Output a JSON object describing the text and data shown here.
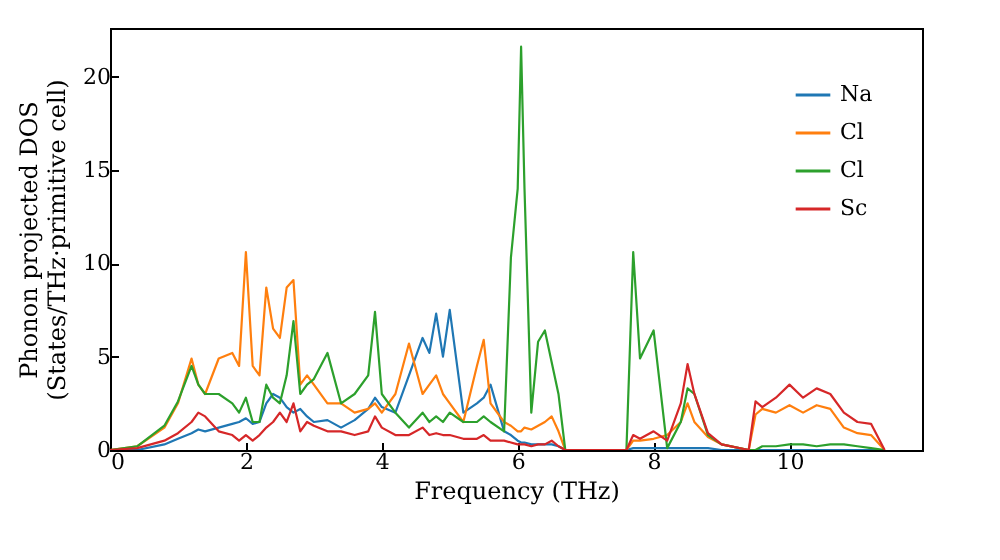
{
  "chart_data": {
    "type": "line",
    "xlabel": "Frequency (THz)",
    "ylabel": "Phonon projected DOS\n(States/THz·primitive cell)",
    "x": [
      0,
      0.4,
      0.8,
      1.0,
      1.2,
      1.3,
      1.4,
      1.6,
      1.8,
      1.9,
      2.0,
      2.1,
      2.2,
      2.3,
      2.4,
      2.5,
      2.6,
      2.7,
      2.8,
      2.9,
      3.0,
      3.2,
      3.4,
      3.6,
      3.8,
      3.9,
      4.0,
      4.2,
      4.4,
      4.6,
      4.7,
      4.8,
      4.9,
      5.0,
      5.2,
      5.4,
      5.5,
      5.6,
      5.8,
      5.9,
      6.0,
      6.05,
      6.1,
      6.2,
      6.3,
      6.4,
      6.5,
      6.6,
      6.7,
      7.0,
      7.6,
      7.7,
      7.8,
      8.0,
      8.2,
      8.4,
      8.5,
      8.6,
      8.8,
      9.0,
      9.4,
      9.5,
      9.6,
      9.8,
      10.0,
      10.2,
      10.4,
      10.6,
      10.8,
      11.0,
      11.2,
      11.4
    ],
    "series": [
      {
        "name": "Na",
        "color": "#1f77b4",
        "values": [
          0,
          0,
          0.3,
          0.6,
          0.9,
          1.1,
          1.0,
          1.2,
          1.4,
          1.5,
          1.7,
          1.4,
          1.5,
          2.5,
          3.0,
          2.8,
          2.3,
          2.0,
          2.2,
          1.8,
          1.5,
          1.6,
          1.2,
          1.6,
          2.2,
          2.8,
          2.3,
          2.0,
          4.0,
          6.0,
          5.2,
          7.3,
          5.0,
          7.5,
          2.0,
          2.5,
          2.8,
          3.5,
          1.0,
          0.8,
          0.5,
          0.4,
          0.4,
          0.3,
          0.3,
          0.3,
          0.3,
          0.2,
          0,
          0,
          0,
          0.1,
          0.1,
          0.1,
          0.1,
          0.1,
          0.1,
          0.1,
          0.1,
          0,
          0,
          0,
          0,
          0,
          0,
          0,
          0,
          0,
          0,
          0,
          0,
          0
        ]
      },
      {
        "name": "Cl",
        "color": "#ff7f0e",
        "values": [
          0,
          0.2,
          1.2,
          2.5,
          4.9,
          3.5,
          3.0,
          4.9,
          5.2,
          4.5,
          10.6,
          4.5,
          4.0,
          8.7,
          6.5,
          6.0,
          8.7,
          9.1,
          3.5,
          4.0,
          3.5,
          2.5,
          2.5,
          2.0,
          2.2,
          2.5,
          2.0,
          3.0,
          5.7,
          3.0,
          3.5,
          4.0,
          3.0,
          2.5,
          1.5,
          4.5,
          5.9,
          2.5,
          1.5,
          1.3,
          1.0,
          1.0,
          1.2,
          1.1,
          1.3,
          1.5,
          1.8,
          1.0,
          0,
          0,
          0,
          0.5,
          0.5,
          0.6,
          0.8,
          1.5,
          2.5,
          1.5,
          0.7,
          0.3,
          0,
          1.9,
          2.2,
          2.0,
          2.4,
          2.0,
          2.4,
          2.2,
          1.2,
          0.9,
          0.8,
          0
        ]
      },
      {
        "name": "Cl",
        "color": "#2ca02c",
        "values": [
          0,
          0.2,
          1.3,
          2.6,
          4.5,
          3.5,
          3.0,
          3.0,
          2.5,
          2.0,
          2.8,
          1.5,
          1.5,
          3.5,
          2.8,
          2.5,
          4.0,
          6.9,
          3.0,
          3.5,
          3.8,
          5.2,
          2.5,
          3.0,
          4.0,
          7.4,
          3.0,
          2.0,
          1.2,
          2.0,
          1.5,
          1.8,
          1.5,
          2.0,
          1.5,
          1.5,
          1.8,
          1.5,
          1.0,
          10.3,
          14.0,
          21.6,
          14.0,
          2.0,
          5.8,
          6.4,
          4.7,
          3.0,
          0,
          0,
          0,
          10.6,
          4.9,
          6.4,
          0.1,
          1.5,
          3.3,
          3.0,
          0.8,
          0.3,
          0,
          0,
          0.2,
          0.2,
          0.3,
          0.3,
          0.2,
          0.3,
          0.3,
          0.2,
          0.1,
          0
        ]
      },
      {
        "name": "Sc",
        "color": "#d62728",
        "values": [
          0,
          0.1,
          0.5,
          0.9,
          1.5,
          2.0,
          1.8,
          1.0,
          0.8,
          0.5,
          0.8,
          0.5,
          0.8,
          1.2,
          1.5,
          2.0,
          1.5,
          2.5,
          1.0,
          1.5,
          1.3,
          1.0,
          1.0,
          0.8,
          1.0,
          1.8,
          1.2,
          0.8,
          0.8,
          1.2,
          0.8,
          0.9,
          0.8,
          0.8,
          0.6,
          0.6,
          0.8,
          0.5,
          0.5,
          0.4,
          0.3,
          0.3,
          0.3,
          0.2,
          0.3,
          0.3,
          0.5,
          0.2,
          0,
          0,
          0,
          0.8,
          0.6,
          1.0,
          0.5,
          2.5,
          4.6,
          3.0,
          0.9,
          0.3,
          0,
          2.6,
          2.3,
          2.8,
          3.5,
          2.8,
          3.3,
          3.0,
          2.0,
          1.5,
          1.4,
          0
        ]
      }
    ],
    "xlim": [
      0,
      11.95
    ],
    "ylim": [
      0,
      22.6
    ],
    "xticks": [
      0,
      2,
      4,
      6,
      8,
      10
    ],
    "yticks": [
      0,
      5,
      10,
      15,
      20
    ],
    "legend": "top right",
    "grid": false
  }
}
